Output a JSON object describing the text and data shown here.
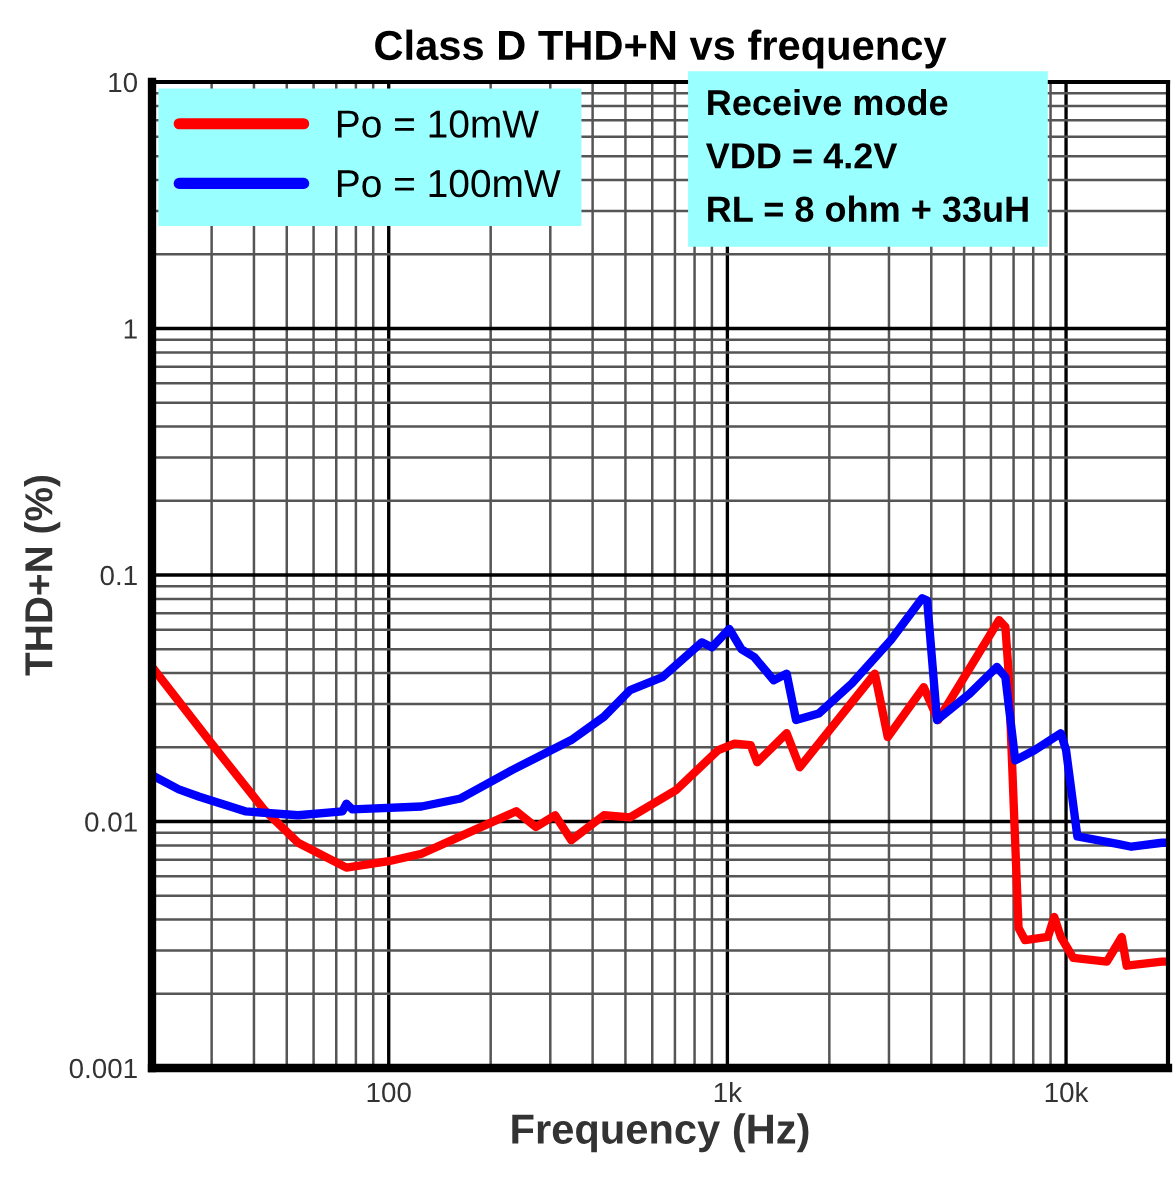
{
  "chart_data": {
    "type": "line",
    "title": "Class D THD+N vs frequency",
    "xlabel": "Frequency (Hz)",
    "ylabel": "THD+N (%)",
    "log": "xy",
    "xlim": [
      20,
      20000
    ],
    "xticks": [
      {
        "value": 20,
        "label": null
      },
      100,
      {
        "value": 1000,
        "label": "1k"
      },
      {
        "value": 10000,
        "label": "10k"
      },
      {
        "value": 20000,
        "label": null
      }
    ],
    "ylim": [
      0.001,
      10
    ],
    "yticks": [
      0.001,
      0.01,
      0.1,
      1,
      10
    ],
    "grid": true,
    "legend": "top left",
    "line_style": "solid",
    "marker": "none",
    "annotations": [
      "Receive mode",
      "VDD = 4.2V",
      "RL = 8 ohm + 33uH"
    ],
    "series": [
      {
        "name": "Po = 10mW",
        "color": "#ff0000",
        "x": [
          20,
          30,
          43,
          54,
          75,
          100,
          125,
          178,
          238,
          272,
          310,
          346,
          432,
          516,
          705,
          940,
          1050,
          1172,
          1225,
          1496,
          1636,
          2725,
          2976,
          3800,
          4190,
          6340,
          6620,
          6760,
          7240,
          7570,
          8840,
          9230,
          9650,
          10500,
          13200,
          14600,
          15100,
          19200,
          20000
        ],
        "values": [
          0.0424,
          0.0207,
          0.0111,
          0.0082,
          0.0065,
          0.0069,
          0.0074,
          0.0092,
          0.011,
          0.0095,
          0.0106,
          0.0084,
          0.0106,
          0.0104,
          0.0134,
          0.0195,
          0.0207,
          0.0204,
          0.0174,
          0.0228,
          0.0166,
          0.0398,
          0.022,
          0.0351,
          0.0258,
          0.0656,
          0.0616,
          0.041,
          0.0037,
          0.0033,
          0.0034,
          0.0041,
          0.0034,
          0.0028,
          0.0027,
          0.0034,
          0.0026,
          0.0027,
          0.0027
        ]
      },
      {
        "name": "Po = 100mW",
        "color": "#0000ff",
        "x": [
          20,
          24,
          27.6,
          37.7,
          54,
          73,
          75,
          78,
          125,
          163,
          232,
          346,
          432,
          516,
          643,
          840,
          900,
          1013,
          1100,
          1200,
          1370,
          1496,
          1595,
          1860,
          2330,
          3040,
          3760,
          3890,
          4160,
          5190,
          6250,
          6620,
          7080,
          8090,
          9650,
          10000,
          10800,
          14300,
          15600,
          19200,
          20000
        ],
        "values": [
          0.0154,
          0.0135,
          0.0126,
          0.011,
          0.0106,
          0.011,
          0.0118,
          0.0112,
          0.0115,
          0.0124,
          0.0162,
          0.0214,
          0.0266,
          0.0341,
          0.0385,
          0.0533,
          0.0509,
          0.0604,
          0.05,
          0.0465,
          0.0374,
          0.0398,
          0.0258,
          0.0274,
          0.0363,
          0.0545,
          0.0805,
          0.0788,
          0.0258,
          0.033,
          0.0424,
          0.0385,
          0.0177,
          0.0195,
          0.0228,
          0.0195,
          0.0087,
          0.0081,
          0.0079,
          0.0082,
          0.0082
        ]
      }
    ]
  }
}
